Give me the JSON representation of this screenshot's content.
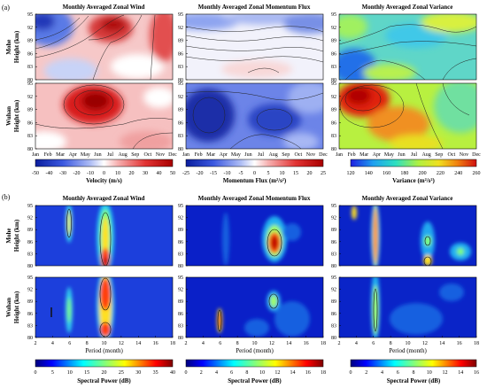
{
  "figure": {
    "panel_a": {
      "label": "(a)",
      "titles": [
        "Monthly Averaged Zonal Wind",
        "Monthly Averaged Zonal Momentum Flux",
        "Monthly Averaged Zonal Variance"
      ],
      "row_labels": [
        [
          "Mohe",
          "Height (km)"
        ],
        [
          "Wuhan",
          "Height (km)"
        ]
      ],
      "y_ticks": [
        "95",
        "92",
        "89",
        "86",
        "83",
        "80"
      ],
      "x_ticks": [
        "Jan",
        "Feb",
        "Mar",
        "Apr",
        "May",
        "Jun",
        "Jul",
        "Aug",
        "Sep",
        "Oct",
        "Nov",
        "Dec"
      ],
      "colorbars": [
        {
          "ticks": [
            "-50",
            "-40",
            "-30",
            "-20",
            "-10",
            "0",
            "10",
            "20",
            "30",
            "40",
            "50"
          ],
          "label": "Velocity (m/s)"
        },
        {
          "ticks": [
            "-25",
            "-20",
            "-15",
            "-10",
            "-5",
            "0",
            "5",
            "10",
            "15",
            "20",
            "25"
          ],
          "label": "Momentum Flux (m²/s²)"
        },
        {
          "ticks": [
            "120",
            "140",
            "160",
            "180",
            "200",
            "220",
            "240",
            "260"
          ],
          "label": "Variance (m²/s²)"
        }
      ]
    },
    "panel_b": {
      "label": "(b)",
      "titles": [
        "Monthly Averaged Zonal Wind",
        "Monthly Averaged Zonal Momentum Flux",
        "Monthly Averaged Zonal Variance"
      ],
      "row_labels": [
        [
          "Mohe",
          "Height (km)"
        ],
        [
          "Wuhan",
          "Height (km)"
        ]
      ],
      "y_ticks": [
        "95",
        "92",
        "89",
        "86",
        "83",
        "80"
      ],
      "x_ticks": [
        "2",
        "4",
        "6",
        "8",
        "10",
        "12",
        "14",
        "16",
        "18"
      ],
      "x_label": "Period (month)",
      "colorbars": [
        {
          "ticks": [
            "0",
            "5",
            "10",
            "15",
            "20",
            "25",
            "30",
            "35",
            "40"
          ],
          "label": "Spectral Power (dB)"
        },
        {
          "ticks": [
            "0",
            "2",
            "4",
            "6",
            "8",
            "10",
            "12",
            "14",
            "16",
            "18"
          ],
          "label": "Spectral Power (dB)"
        },
        {
          "ticks": [
            "0",
            "2",
            "4",
            "6",
            "8",
            "10",
            "12",
            "14",
            "16"
          ],
          "label": "Spectral Power (dB)"
        }
      ]
    },
    "colors": {
      "jet": [
        "#00007f",
        "#0000ff",
        "#007fff",
        "#00ffff",
        "#7fff7f",
        "#ffff00",
        "#ff7f00",
        "#ff0000",
        "#7f0000"
      ],
      "diverging": [
        "#0b1e9e",
        "#3b58e0",
        "#8fa6f2",
        "#ffffff",
        "#f6a0a0",
        "#e23434",
        "#a80000"
      ],
      "rainbow": [
        "#1f1fe0",
        "#1fa0f0",
        "#2ee0c0",
        "#b0f040",
        "#f0e020",
        "#f08010",
        "#d01010"
      ]
    }
  }
}
